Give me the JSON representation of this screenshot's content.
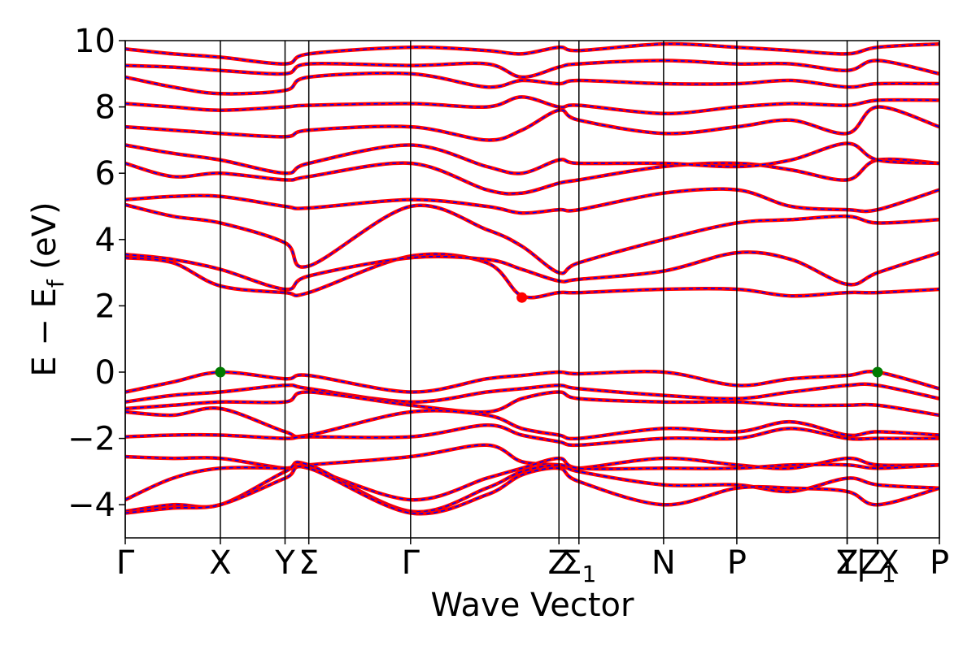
{
  "chart_data": {
    "type": "line",
    "xlabel": "Wave Vector",
    "ylabel": "E − E_f (eV)",
    "ylabel_parts": {
      "main": "E − E",
      "subscript": "f",
      "unit": " (eV)"
    },
    "ylim": [
      -5,
      10
    ],
    "yticks": [
      -4,
      -2,
      0,
      2,
      4,
      6,
      8,
      10
    ],
    "ytick_labels": [
      "−4",
      "−2",
      "0",
      "2",
      "4",
      "6",
      "8",
      "10"
    ],
    "xlim": [
      0,
      8.56
    ],
    "kpoints": [
      {
        "label": "Γ",
        "x": 0.0
      },
      {
        "label": "X",
        "x": 1.0
      },
      {
        "label": "Y",
        "x": 1.68
      },
      {
        "label": "Σ",
        "x": 1.93
      },
      {
        "label": "Γ",
        "x": 3.0
      },
      {
        "label": "Z",
        "x": 4.56
      },
      {
        "label": "Σ",
        "subscript": "1",
        "x": 4.77
      },
      {
        "label": "N",
        "x": 5.66
      },
      {
        "label": "P",
        "x": 6.43
      },
      {
        "label": "Y",
        "x": 7.59
      },
      {
        "label": "Z",
        "x": 7.59
      },
      {
        "label": "Z",
        "subscript": "1",
        "x": 7.91
      },
      {
        "label": "| X",
        "x": 7.91
      },
      {
        "label": "P",
        "x": 8.56
      }
    ],
    "markers": [
      {
        "x": 1.0,
        "y": 0.0,
        "color": "#007a00"
      },
      {
        "x": 7.91,
        "y": 0.0,
        "color": "#007a00"
      },
      {
        "x": 4.17,
        "y": 2.25,
        "color": "#ff0000"
      }
    ],
    "series": [
      {
        "x": [
          0,
          0.5,
          1.0,
          1.68,
          1.93,
          3.0,
          3.8,
          4.17,
          4.56,
          4.77,
          5.66,
          6.43,
          7.0,
          7.59,
          7.91,
          8.56
        ],
        "y": [
          3.45,
          3.3,
          2.6,
          2.4,
          2.4,
          3.5,
          3.3,
          2.3,
          2.4,
          2.4,
          2.5,
          2.5,
          2.3,
          2.4,
          2.4,
          2.5
        ]
      },
      {
        "x": [
          0,
          0.5,
          1.0,
          1.68,
          1.93,
          3.0,
          3.8,
          4.17,
          4.56,
          4.77,
          5.66,
          6.43,
          7.0,
          7.59,
          7.91,
          8.56
        ],
        "y": [
          3.55,
          3.4,
          3.1,
          2.5,
          2.9,
          3.45,
          3.4,
          3.1,
          2.75,
          2.8,
          3.05,
          3.6,
          3.4,
          2.65,
          3.0,
          3.6
        ]
      },
      {
        "x": [
          0,
          0.5,
          1.0,
          1.68,
          1.93,
          3.0,
          3.8,
          4.17,
          4.56,
          4.77,
          5.66,
          6.43,
          7.0,
          7.59,
          7.91,
          8.56
        ],
        "y": [
          5.05,
          4.7,
          4.5,
          3.9,
          3.2,
          5.0,
          4.3,
          3.8,
          3.0,
          3.3,
          4.0,
          4.5,
          4.6,
          4.7,
          4.5,
          4.6
        ]
      },
      {
        "x": [
          0,
          0.5,
          1.0,
          1.68,
          1.93,
          3.0,
          3.8,
          4.17,
          4.56,
          4.77,
          5.66,
          6.43,
          7.0,
          7.59,
          7.91,
          8.56
        ],
        "y": [
          5.2,
          5.3,
          5.3,
          5.0,
          4.95,
          5.2,
          5.0,
          4.8,
          4.9,
          4.9,
          5.4,
          5.5,
          5.0,
          4.9,
          4.9,
          5.5
        ]
      },
      {
        "x": [
          0,
          0.5,
          1.0,
          1.68,
          1.93,
          3.0,
          3.8,
          4.17,
          4.56,
          4.77,
          5.66,
          6.43,
          7.0,
          7.59,
          7.91,
          8.56
        ],
        "y": [
          6.3,
          5.9,
          6.0,
          5.8,
          5.9,
          6.3,
          5.5,
          5.4,
          5.7,
          5.8,
          6.2,
          6.3,
          6.1,
          5.8,
          6.4,
          6.3
        ]
      },
      {
        "x": [
          0,
          0.5,
          1.0,
          1.68,
          1.93,
          3.0,
          3.8,
          4.17,
          4.56,
          4.77,
          5.66,
          6.43,
          7.0,
          7.59,
          7.91,
          8.56
        ],
        "y": [
          6.85,
          6.6,
          6.4,
          6.0,
          6.3,
          6.85,
          6.2,
          6.0,
          6.4,
          6.3,
          6.3,
          6.2,
          6.4,
          6.9,
          6.4,
          6.3
        ]
      },
      {
        "x": [
          0,
          0.5,
          1.0,
          1.68,
          1.93,
          3.0,
          3.8,
          4.17,
          4.56,
          4.77,
          5.66,
          6.43,
          7.0,
          7.59,
          7.91,
          8.56
        ],
        "y": [
          7.4,
          7.3,
          7.2,
          7.1,
          7.3,
          7.4,
          7.0,
          7.3,
          7.9,
          7.6,
          7.2,
          7.4,
          7.6,
          7.2,
          8.0,
          7.4
        ]
      },
      {
        "x": [
          0,
          0.5,
          1.0,
          1.68,
          1.93,
          3.0,
          3.8,
          4.17,
          4.56,
          4.77,
          5.66,
          6.43,
          7.0,
          7.59,
          7.91,
          8.56
        ],
        "y": [
          8.1,
          8.0,
          7.9,
          8.0,
          8.05,
          8.1,
          8.0,
          8.3,
          8.0,
          8.05,
          7.8,
          8.0,
          8.1,
          8.05,
          8.2,
          8.2
        ]
      },
      {
        "x": [
          0,
          0.5,
          1.0,
          1.68,
          1.93,
          3.0,
          3.8,
          4.17,
          4.56,
          4.77,
          5.66,
          6.43,
          7.0,
          7.59,
          7.91,
          8.56
        ],
        "y": [
          8.9,
          8.6,
          8.4,
          8.5,
          8.9,
          9.0,
          8.6,
          8.8,
          8.7,
          8.8,
          8.7,
          8.7,
          8.8,
          8.6,
          8.7,
          8.7
        ]
      },
      {
        "x": [
          0,
          0.5,
          1.0,
          1.68,
          1.93,
          3.0,
          3.8,
          4.17,
          4.56,
          4.77,
          5.66,
          6.43,
          7.0,
          7.59,
          7.91,
          8.56
        ],
        "y": [
          9.25,
          9.2,
          9.1,
          9.0,
          9.3,
          9.25,
          9.3,
          8.9,
          9.2,
          9.3,
          9.4,
          9.3,
          9.3,
          9.1,
          9.4,
          9.0
        ]
      },
      {
        "x": [
          0,
          0.5,
          1.0,
          1.68,
          1.93,
          3.0,
          3.8,
          4.17,
          4.56,
          4.77,
          5.66,
          6.43,
          7.0,
          7.59,
          7.91,
          8.56
        ],
        "y": [
          9.75,
          9.6,
          9.5,
          9.3,
          9.6,
          9.8,
          9.7,
          9.6,
          9.8,
          9.7,
          9.9,
          9.8,
          9.7,
          9.6,
          9.8,
          9.9
        ]
      },
      {
        "x": [
          0,
          0.5,
          1.0,
          1.68,
          1.93,
          3.0,
          3.8,
          4.17,
          4.56,
          4.77,
          5.66,
          6.43,
          7.0,
          7.59,
          7.91,
          8.56
        ],
        "y": [
          -0.6,
          -0.3,
          0.0,
          -0.2,
          -0.1,
          -0.6,
          -0.2,
          -0.1,
          0.0,
          -0.05,
          0.0,
          -0.4,
          -0.2,
          -0.1,
          0.0,
          -0.5
        ]
      },
      {
        "x": [
          0,
          0.5,
          1.0,
          1.68,
          1.93,
          3.0,
          3.8,
          4.17,
          4.56,
          4.77,
          5.66,
          6.43,
          7.0,
          7.59,
          7.91,
          8.56
        ],
        "y": [
          -0.9,
          -0.7,
          -0.6,
          -0.4,
          -0.5,
          -0.9,
          -0.6,
          -0.5,
          -0.4,
          -0.5,
          -0.7,
          -0.8,
          -0.6,
          -0.4,
          -0.4,
          -0.8
        ]
      },
      {
        "x": [
          0,
          0.5,
          1.0,
          1.68,
          1.93,
          3.0,
          3.8,
          4.17,
          4.56,
          4.77,
          5.66,
          6.43,
          7.0,
          7.59,
          7.91,
          8.56
        ],
        "y": [
          -1.1,
          -1.0,
          -0.9,
          -0.9,
          -0.6,
          -1.0,
          -1.2,
          -0.8,
          -0.6,
          -0.8,
          -0.9,
          -0.9,
          -1.0,
          -1.0,
          -1.0,
          -1.3
        ]
      },
      {
        "x": [
          0,
          0.5,
          1.0,
          1.68,
          1.93,
          3.0,
          3.8,
          4.17,
          4.56,
          4.77,
          5.66,
          6.43,
          7.0,
          7.59,
          7.91,
          8.56
        ],
        "y": [
          -1.2,
          -1.3,
          -1.1,
          -1.8,
          -1.9,
          -1.2,
          -1.3,
          -1.7,
          -1.9,
          -2.0,
          -1.7,
          -1.8,
          -1.5,
          -1.9,
          -1.8,
          -1.9
        ]
      },
      {
        "x": [
          0,
          0.5,
          1.0,
          1.68,
          1.93,
          3.0,
          3.8,
          4.17,
          4.56,
          4.77,
          5.66,
          6.43,
          7.0,
          7.59,
          7.91,
          8.56
        ],
        "y": [
          -1.95,
          -1.9,
          -1.9,
          -2.0,
          -1.95,
          -1.95,
          -1.6,
          -1.9,
          -2.1,
          -2.2,
          -2.0,
          -2.0,
          -1.7,
          -2.0,
          -2.0,
          -2.0
        ]
      },
      {
        "x": [
          0,
          0.5,
          1.0,
          1.68,
          1.93,
          3.0,
          3.8,
          4.17,
          4.56,
          4.77,
          5.66,
          6.43,
          7.0,
          7.59,
          7.91,
          8.56
        ],
        "y": [
          -2.55,
          -2.6,
          -2.6,
          -2.9,
          -2.8,
          -2.55,
          -2.2,
          -2.7,
          -2.8,
          -2.9,
          -2.6,
          -2.8,
          -2.9,
          -2.6,
          -2.8,
          -2.8
        ]
      },
      {
        "x": [
          0,
          0.5,
          1.0,
          1.68,
          1.93,
          3.0,
          3.8,
          4.17,
          4.56,
          4.77,
          5.66,
          6.43,
          7.0,
          7.59,
          7.91,
          8.56
        ],
        "y": [
          -3.85,
          -3.2,
          -2.9,
          -2.9,
          -2.9,
          -3.85,
          -3.2,
          -2.9,
          -2.6,
          -2.9,
          -2.9,
          -2.9,
          -2.8,
          -2.8,
          -2.9,
          -2.8
        ]
      },
      {
        "x": [
          0,
          0.5,
          1.0,
          1.68,
          1.93,
          3.0,
          3.8,
          4.17,
          4.56,
          4.77,
          5.66,
          6.43,
          7.0,
          7.59,
          7.91,
          8.56
        ],
        "y": [
          -4.2,
          -4.0,
          -4.0,
          -3.0,
          -2.8,
          -4.2,
          -3.5,
          -3.0,
          -2.8,
          -3.0,
          -3.4,
          -3.4,
          -3.6,
          -3.2,
          -3.4,
          -3.5
        ]
      },
      {
        "x": [
          0,
          0.5,
          1.0,
          1.68,
          1.93,
          3.0,
          3.8,
          4.17,
          4.56,
          4.77,
          5.66,
          6.43,
          7.0,
          7.59,
          7.91,
          8.56
        ],
        "y": [
          -4.25,
          -4.1,
          -4.0,
          -3.2,
          -2.9,
          -4.25,
          -3.7,
          -3.1,
          -2.9,
          -3.3,
          -4.0,
          -3.5,
          -3.5,
          -3.6,
          -4.0,
          -3.5
        ]
      }
    ],
    "colors": {
      "band_outer": "#ff0000",
      "band_inner": "#0000ff",
      "axis": "#000000"
    }
  }
}
